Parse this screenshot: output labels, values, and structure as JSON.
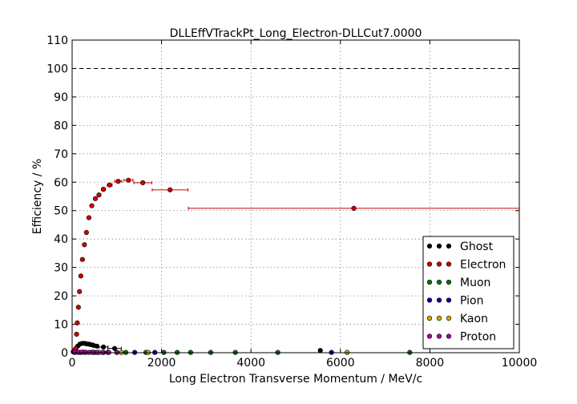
{
  "chart_data": {
    "type": "scatter",
    "title": "DLLEffVTrackPt_Long_Electron-DLLCut7.0000",
    "xlabel": "Long Electron Transverse Momentum / MeV/c",
    "ylabel": "Efficiency / %",
    "xlim": [
      0,
      10000
    ],
    "ylim": [
      0,
      110
    ],
    "xticks": [
      0,
      2000,
      4000,
      6000,
      8000,
      10000
    ],
    "yticks": [
      0,
      10,
      20,
      30,
      40,
      50,
      60,
      70,
      80,
      90,
      100,
      110
    ],
    "grid": true,
    "reference_line": 100,
    "legend_position": "lower-right",
    "series": [
      {
        "name": "Ghost",
        "color": "#000000",
        "points": [
          {
            "x": 25,
            "y": 0.3,
            "xerr": 25
          },
          {
            "x": 75,
            "y": 1.2,
            "xerr": 25
          },
          {
            "x": 125,
            "y": 2.3,
            "xerr": 25
          },
          {
            "x": 175,
            "y": 3.0,
            "xerr": 25
          },
          {
            "x": 225,
            "y": 3.3,
            "xerr": 25
          },
          {
            "x": 275,
            "y": 3.3,
            "xerr": 25
          },
          {
            "x": 325,
            "y": 3.1,
            "xerr": 25
          },
          {
            "x": 375,
            "y": 3.0,
            "xerr": 25
          },
          {
            "x": 425,
            "y": 2.8,
            "xerr": 25
          },
          {
            "x": 475,
            "y": 2.6,
            "xerr": 25
          },
          {
            "x": 550,
            "y": 2.3,
            "xerr": 50
          },
          {
            "x": 700,
            "y": 2.0,
            "xerr": 100
          },
          {
            "x": 950,
            "y": 1.5,
            "xerr": 150
          },
          {
            "x": 5550,
            "y": 0.8,
            "xerr": 0
          }
        ]
      },
      {
        "name": "Electron",
        "color": "#cc0000",
        "points": [
          {
            "x": 50,
            "y": 0.8,
            "xerr": 10
          },
          {
            "x": 80,
            "y": 1.5,
            "xerr": 10
          },
          {
            "x": 100,
            "y": 6.5,
            "xerr": 10
          },
          {
            "x": 115,
            "y": 10.5,
            "xerr": 10
          },
          {
            "x": 140,
            "y": 16.0,
            "xerr": 10
          },
          {
            "x": 165,
            "y": 21.5,
            "xerr": 10
          },
          {
            "x": 195,
            "y": 27.0,
            "xerr": 10
          },
          {
            "x": 230,
            "y": 32.8,
            "xerr": 15
          },
          {
            "x": 275,
            "y": 38.0,
            "xerr": 15
          },
          {
            "x": 320,
            "y": 42.3,
            "xerr": 15
          },
          {
            "x": 375,
            "y": 47.5,
            "xerr": 20
          },
          {
            "x": 440,
            "y": 51.7,
            "xerr": 25
          },
          {
            "x": 520,
            "y": 54.2,
            "xerr": 30
          },
          {
            "x": 600,
            "y": 55.5,
            "xerr": 35
          },
          {
            "x": 700,
            "y": 57.5,
            "xerr": 45
          },
          {
            "x": 840,
            "y": 59.0,
            "xerr": 55
          },
          {
            "x": 1030,
            "y": 60.3,
            "xerr": 80
          },
          {
            "x": 1260,
            "y": 60.7,
            "xerr": 100
          },
          {
            "x": 1580,
            "y": 59.8,
            "xerr": 200
          },
          {
            "x": 2190,
            "y": 57.3,
            "xerr": 400
          },
          {
            "x": 6300,
            "y": 50.8,
            "xerr": 3700
          }
        ]
      },
      {
        "name": "Muon",
        "color": "#007700",
        "points": [
          {
            "x": 50,
            "y": 0.1,
            "xerr": 0
          },
          {
            "x": 150,
            "y": 0.1,
            "xerr": 0
          },
          {
            "x": 300,
            "y": 0.1,
            "xerr": 0
          },
          {
            "x": 500,
            "y": 0.1,
            "xerr": 0
          },
          {
            "x": 800,
            "y": 0.1,
            "xerr": 0
          },
          {
            "x": 1200,
            "y": 0.1,
            "xerr": 0
          },
          {
            "x": 1650,
            "y": 0.1,
            "xerr": 0
          },
          {
            "x": 2050,
            "y": 0.1,
            "xerr": 0
          },
          {
            "x": 2350,
            "y": 0.1,
            "xerr": 0
          },
          {
            "x": 2650,
            "y": 0.1,
            "xerr": 0
          },
          {
            "x": 3100,
            "y": 0.1,
            "xerr": 0
          },
          {
            "x": 3650,
            "y": 0.1,
            "xerr": 0
          },
          {
            "x": 4600,
            "y": 0.1,
            "xerr": 0
          },
          {
            "x": 7550,
            "y": 0.1,
            "xerr": 0
          }
        ]
      },
      {
        "name": "Pion",
        "color": "#0000bb",
        "points": [
          {
            "x": 100,
            "y": 0.2,
            "xerr": 0
          },
          {
            "x": 250,
            "y": 0.2,
            "xerr": 0
          },
          {
            "x": 450,
            "y": 0.2,
            "xerr": 0
          },
          {
            "x": 700,
            "y": 0.1,
            "xerr": 0
          },
          {
            "x": 1000,
            "y": 0.1,
            "xerr": 0
          },
          {
            "x": 1400,
            "y": 0.1,
            "xerr": 0
          },
          {
            "x": 1850,
            "y": 0.1,
            "xerr": 0
          },
          {
            "x": 5800,
            "y": 0.1,
            "xerr": 0
          }
        ]
      },
      {
        "name": "Kaon",
        "color": "#ccaa00",
        "points": [
          {
            "x": 200,
            "y": 0.1,
            "xerr": 0
          },
          {
            "x": 600,
            "y": 0.1,
            "xerr": 0
          },
          {
            "x": 1100,
            "y": 0.1,
            "xerr": 0
          },
          {
            "x": 1700,
            "y": 0.1,
            "xerr": 0
          },
          {
            "x": 6150,
            "y": 0.1,
            "xerr": 0
          }
        ]
      },
      {
        "name": "Proton",
        "color": "#aa00aa",
        "points": [
          {
            "x": 60,
            "y": 0.3,
            "xerr": 0
          },
          {
            "x": 140,
            "y": 0.2,
            "xerr": 0
          },
          {
            "x": 220,
            "y": 0.2,
            "xerr": 0
          },
          {
            "x": 300,
            "y": 0.2,
            "xerr": 0
          },
          {
            "x": 380,
            "y": 0.1,
            "xerr": 0
          },
          {
            "x": 460,
            "y": 0.1,
            "xerr": 0
          },
          {
            "x": 560,
            "y": 0.1,
            "xerr": 0
          },
          {
            "x": 680,
            "y": 0.1,
            "xerr": 0
          },
          {
            "x": 820,
            "y": 0.1,
            "xerr": 0
          },
          {
            "x": 1000,
            "y": 0.1,
            "xerr": 0
          }
        ]
      }
    ]
  }
}
